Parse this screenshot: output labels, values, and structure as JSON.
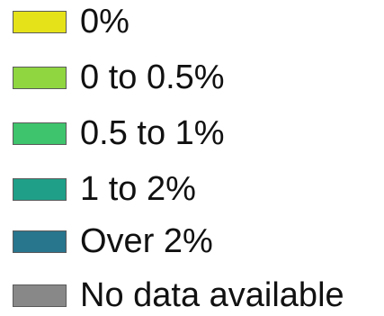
{
  "chart_data": {
    "type": "legend",
    "legend": {
      "items": [
        {
          "label": "0%",
          "color": "#e6e21a"
        },
        {
          "label": "0 to 0.5%",
          "color": "#8fd641"
        },
        {
          "label": "0.5 to 1%",
          "color": "#3ec46c"
        },
        {
          "label": "1 to 2%",
          "color": "#1f9f88"
        },
        {
          "label": "Over 2%",
          "color": "#28758e"
        },
        {
          "label": "No data available",
          "color": "#888888"
        }
      ]
    }
  }
}
